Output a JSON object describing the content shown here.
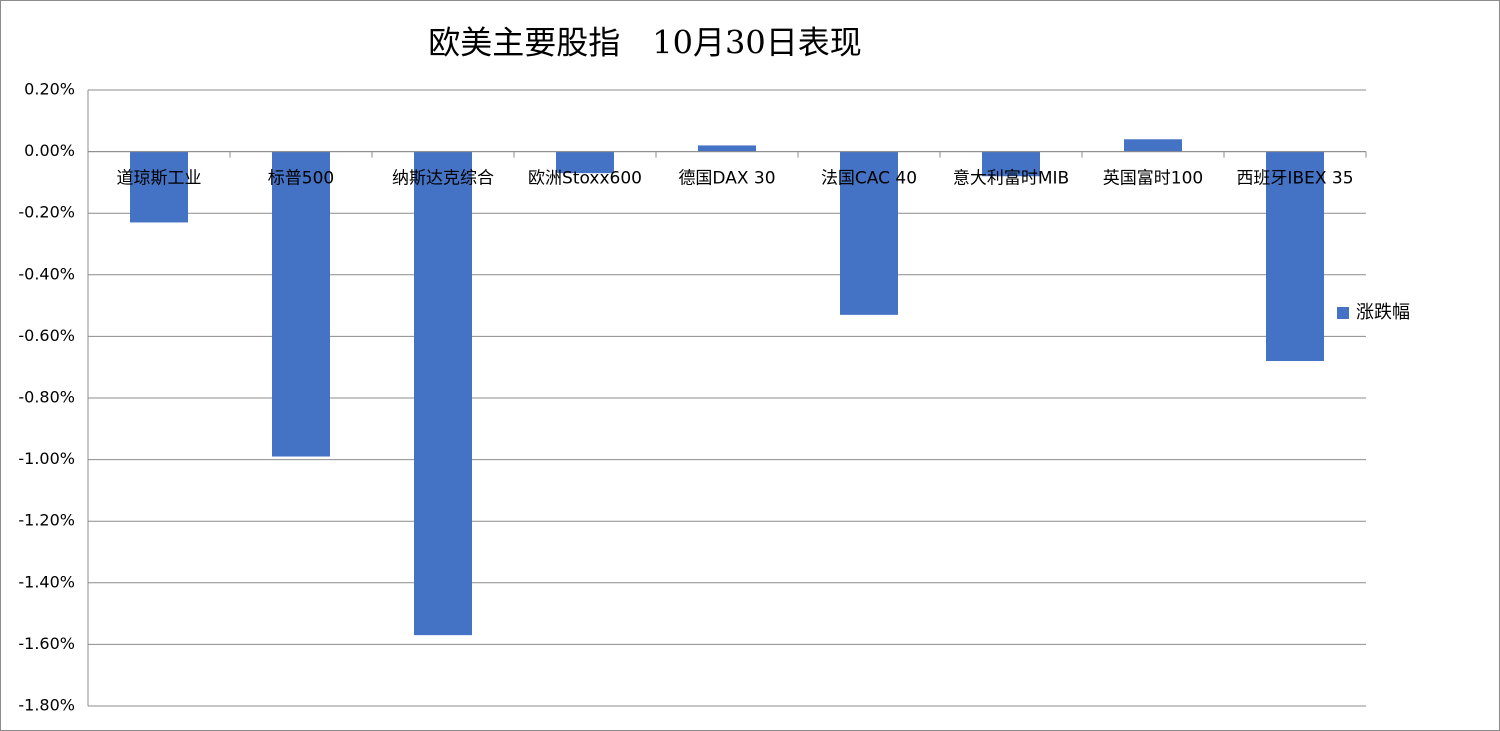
{
  "chart_data": {
    "type": "bar",
    "title": "欧美主要股指　10月30日表现",
    "categories": [
      "道琼斯工业",
      "标普500",
      "纳斯达克综合",
      "欧洲Stoxx600",
      "德国DAX 30",
      "法国CAC 40",
      "意大利富时MIB",
      "英国富时100",
      "西班牙IBEX 35"
    ],
    "series": [
      {
        "name": "涨跌幅",
        "color": "#4472c4",
        "values": [
          -0.23,
          -0.99,
          -1.57,
          -0.07,
          0.02,
          -0.53,
          -0.08,
          0.04,
          -0.68
        ]
      }
    ],
    "ylim": [
      -1.8,
      0.2
    ],
    "yticks": [
      {
        "value": 0.2,
        "label": "0.20%"
      },
      {
        "value": 0,
        "label": "0.00%"
      },
      {
        "value": -0.2,
        "label": "-0.20%"
      },
      {
        "value": -0.4,
        "label": "-0.40%"
      },
      {
        "value": -0.6,
        "label": "-0.60%"
      },
      {
        "value": -0.8,
        "label": "-0.80%"
      },
      {
        "value": -1.0,
        "label": "-1.00%"
      },
      {
        "value": -1.2,
        "label": "-1.20%"
      },
      {
        "value": -1.4,
        "label": "-1.40%"
      },
      {
        "value": -1.6,
        "label": "-1.60%"
      },
      {
        "value": -1.8,
        "label": "-1.80%"
      }
    ],
    "grid": true,
    "legend": "right"
  }
}
